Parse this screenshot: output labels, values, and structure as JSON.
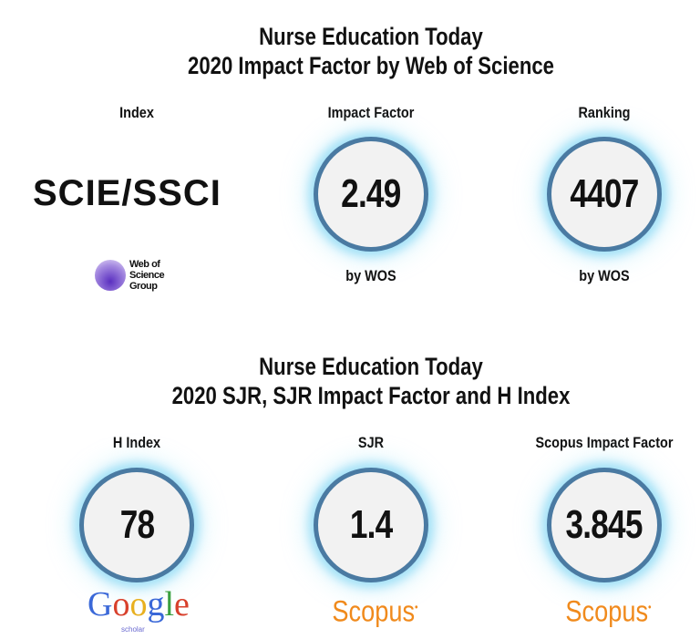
{
  "section1": {
    "title_line1": "Nurse Education Today",
    "title_line2": "2020 Impact Factor by Web of Science",
    "index_label": "Index",
    "index_value": "SCIE/SSCI",
    "wos_logo_text": [
      "Web of",
      "Science",
      "Group"
    ],
    "impact_label": "Impact Factor",
    "impact_value": "2.49",
    "impact_source": "by WOS",
    "ranking_label": "Ranking",
    "ranking_value": "4407",
    "ranking_source": "by WOS"
  },
  "section2": {
    "title_line1": "Nurse Education Today",
    "title_line2": "2020 SJR, SJR Impact Factor and H Index",
    "h_label": "H Index",
    "h_value": "78",
    "google_logo": "Google",
    "google_sub": "scholar",
    "sjr_label": "SJR",
    "sjr_value": "1.4",
    "scopus_logo": "Scopus",
    "sif_label": "Scopus Impact Factor",
    "sif_value": "3.845"
  },
  "colors": {
    "ring": "#4a7aa2",
    "glow": "#5ac8f0",
    "scopus": "#f08a1c"
  }
}
